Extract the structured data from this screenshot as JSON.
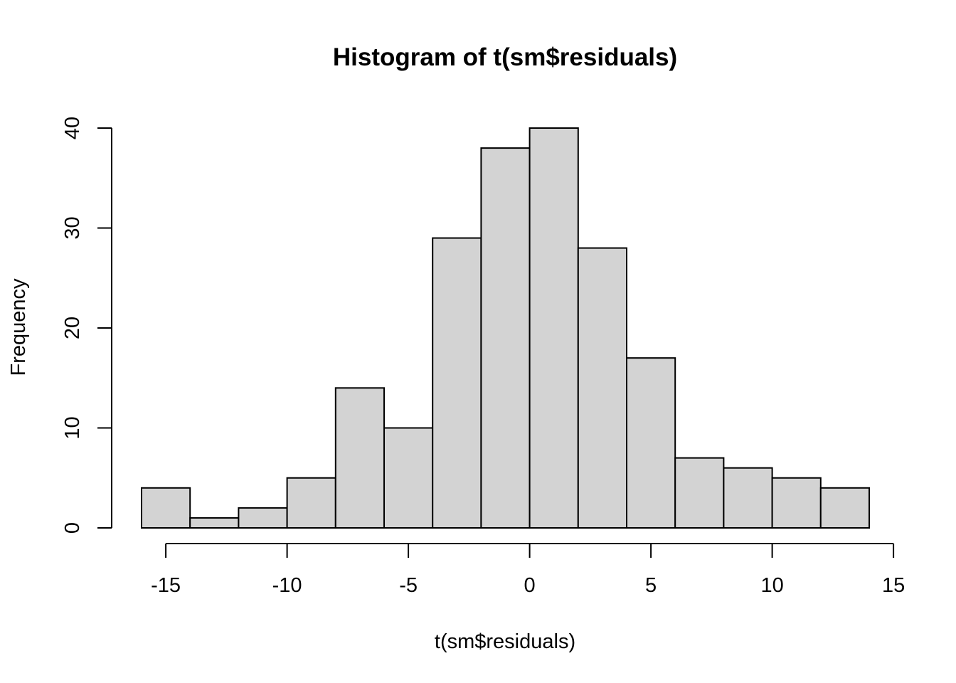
{
  "chart_data": {
    "type": "bar",
    "title": "Histogram of t(sm$residuals)",
    "xlabel": "t(sm$residuals)",
    "ylabel": "Frequency",
    "bin_edges": [
      -16,
      -14,
      -12,
      -10,
      -8,
      -6,
      -4,
      -2,
      0,
      2,
      4,
      6,
      8,
      10,
      12,
      14
    ],
    "values": [
      4,
      1,
      2,
      5,
      14,
      10,
      29,
      38,
      40,
      28,
      17,
      7,
      6,
      5,
      4
    ],
    "xlim": [
      -16,
      14
    ],
    "ylim": [
      0,
      40
    ],
    "x_ticks": [
      -15,
      -10,
      -5,
      0,
      5,
      10,
      15
    ],
    "x_tick_labels": [
      "-15",
      "-10",
      "-5",
      "0",
      "5",
      "10",
      "15"
    ],
    "y_ticks": [
      0,
      10,
      20,
      30,
      40
    ],
    "y_tick_labels": [
      "0",
      "10",
      "20",
      "30",
      "40"
    ],
    "bar_fill": "#d3d3d3",
    "grid": false,
    "legend": "none"
  }
}
